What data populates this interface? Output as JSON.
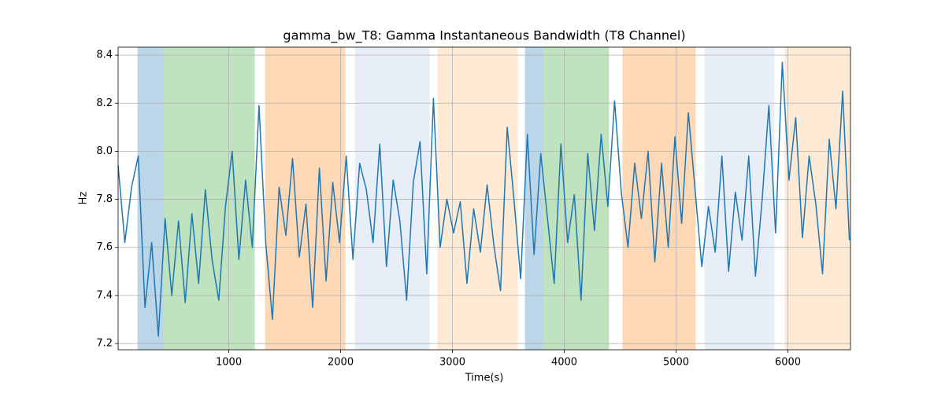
{
  "chart_data": {
    "type": "line",
    "title": "gamma_bw_T8: Gamma Instantaneous Bandwidth (T8 Channel)",
    "xlabel": "Time(s)",
    "ylabel": "Hz",
    "x": [
      10,
      70,
      130,
      190,
      250,
      310,
      370,
      430,
      490,
      550,
      610,
      670,
      730,
      790,
      850,
      910,
      970,
      1030,
      1090,
      1150,
      1210,
      1270,
      1330,
      1390,
      1450,
      1510,
      1570,
      1630,
      1690,
      1750,
      1810,
      1870,
      1930,
      1990,
      2050,
      2110,
      2170,
      2230,
      2290,
      2350,
      2410,
      2470,
      2530,
      2590,
      2650,
      2710,
      2770,
      2830,
      2890,
      2950,
      3010,
      3070,
      3130,
      3190,
      3250,
      3310,
      3370,
      3430,
      3490,
      3550,
      3610,
      3670,
      3730,
      3790,
      3850,
      3910,
      3970,
      4030,
      4090,
      4150,
      4210,
      4270,
      4330,
      4390,
      4450,
      4510,
      4570,
      4630,
      4690,
      4750,
      4810,
      4870,
      4930,
      4990,
      5050,
      5110,
      5170,
      5230,
      5290,
      5350,
      5410,
      5470,
      5530,
      5590,
      5650,
      5710,
      5770,
      5830,
      5890,
      5950,
      6010,
      6070,
      6130,
      6190,
      6250,
      6310,
      6370,
      6430,
      6490,
      6550
    ],
    "series": [
      {
        "name": "gamma_bw_T8",
        "color": "#1f77b4",
        "values": [
          7.94,
          7.62,
          7.85,
          7.98,
          7.35,
          7.62,
          7.23,
          7.72,
          7.4,
          7.71,
          7.37,
          7.74,
          7.45,
          7.84,
          7.55,
          7.38,
          7.77,
          8.0,
          7.55,
          7.88,
          7.6,
          8.19,
          7.62,
          7.3,
          7.85,
          7.65,
          7.97,
          7.56,
          7.78,
          7.35,
          7.93,
          7.46,
          7.87,
          7.62,
          7.98,
          7.55,
          7.95,
          7.84,
          7.62,
          8.03,
          7.52,
          7.88,
          7.71,
          7.38,
          7.87,
          8.04,
          7.49,
          8.22,
          7.6,
          7.8,
          7.66,
          7.79,
          7.45,
          7.76,
          7.58,
          7.86,
          7.61,
          7.42,
          8.1,
          7.8,
          7.47,
          8.07,
          7.57,
          7.99,
          7.72,
          7.45,
          8.03,
          7.62,
          7.82,
          7.38,
          7.99,
          7.67,
          8.07,
          7.77,
          8.21,
          7.83,
          7.6,
          7.95,
          7.72,
          8.0,
          7.54,
          7.95,
          7.6,
          8.06,
          7.7,
          8.16,
          7.84,
          7.52,
          7.77,
          7.58,
          7.98,
          7.5,
          7.83,
          7.63,
          7.98,
          7.48,
          7.8,
          8.19,
          7.66,
          8.37,
          7.88,
          8.14,
          7.64,
          7.98,
          7.78,
          7.49,
          8.05,
          7.76,
          8.25,
          7.63
        ]
      }
    ],
    "spans": [
      {
        "start": 183,
        "end": 415,
        "color": "#1f77b4"
      },
      {
        "start": 415,
        "end": 1232,
        "color": "#2ca02c"
      },
      {
        "start": 1324,
        "end": 2042,
        "color": "#ff7f0e"
      },
      {
        "start": 2127,
        "end": 2796,
        "color": "#aec7e8"
      },
      {
        "start": 2866,
        "end": 3585,
        "color": "#ffbb78"
      },
      {
        "start": 3648,
        "end": 3810,
        "color": "#1f77b4"
      },
      {
        "start": 3810,
        "end": 4401,
        "color": "#2ca02c"
      },
      {
        "start": 4521,
        "end": 5176,
        "color": "#ff7f0e"
      },
      {
        "start": 5254,
        "end": 5880,
        "color": "#aec7e8"
      },
      {
        "start": 5972,
        "end": 6563,
        "color": "#ffbb78"
      }
    ],
    "xlim": [
      10,
      6560
    ],
    "ylim": [
      7.174,
      8.433
    ],
    "xticks": [
      1000,
      2000,
      3000,
      4000,
      5000,
      6000
    ],
    "yticks": [
      7.2,
      7.4,
      7.6,
      7.8,
      {
        "value": 8,
        "label": "8.0"
      },
      8.2,
      8.4
    ],
    "grid": true
  }
}
